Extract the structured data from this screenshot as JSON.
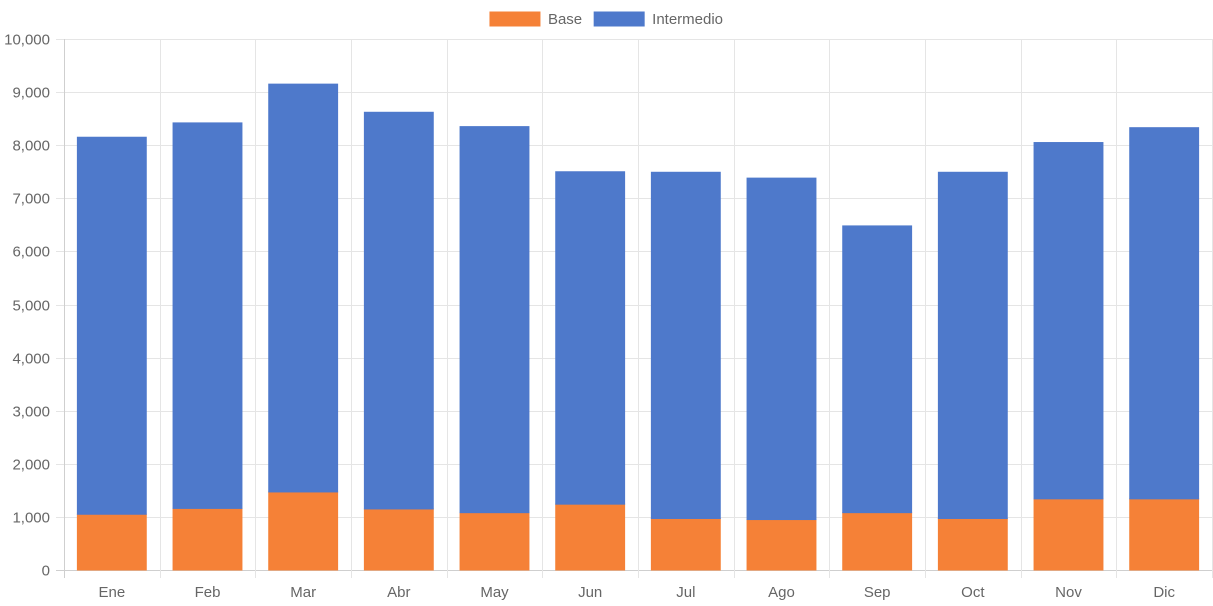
{
  "chart_data": {
    "type": "bar",
    "stacked": true,
    "categories": [
      "Ene",
      "Feb",
      "Mar",
      "Abr",
      "May",
      "Jun",
      "Jul",
      "Ago",
      "Sep",
      "Oct",
      "Nov",
      "Dic"
    ],
    "series": [
      {
        "name": "Base",
        "color": "#f58137",
        "values": [
          1050,
          1160,
          1470,
          1150,
          1080,
          1240,
          970,
          950,
          1080,
          970,
          1340,
          1340
        ]
      },
      {
        "name": "Intermedio",
        "color": "#4e79cb",
        "values": [
          7100,
          7260,
          7680,
          7470,
          7270,
          6260,
          6520,
          6430,
          5400,
          6520,
          6710,
          6990
        ]
      }
    ],
    "ylim": [
      0,
      10000
    ],
    "yticks": [
      "0",
      "1,000",
      "2,000",
      "3,000",
      "4,000",
      "5,000",
      "6,000",
      "7,000",
      "8,000",
      "9,000",
      "10,000"
    ],
    "grid": true,
    "legend_position": "top-center",
    "title": "",
    "xlabel": "",
    "ylabel": ""
  }
}
